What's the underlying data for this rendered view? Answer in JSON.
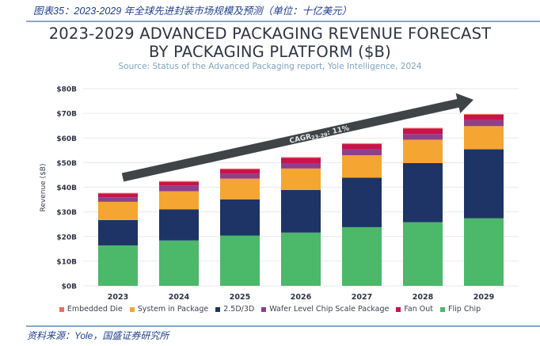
{
  "figure": {
    "caption": "图表35：2023-2029 年全球先进封装市场规模及预测（单位：十亿美元）",
    "source_note": "资料来源：Yole，国盛证券研究所"
  },
  "chart_data": {
    "type": "bar",
    "stacked": true,
    "title_line1": "2023-2029 ADVANCED PACKAGING REVENUE FORECAST",
    "title_line2": "BY PACKAGING PLATFORM ($B)",
    "subtitle": "Source: Status of the Advanced Packaging report, Yole Intelligence, 2024",
    "xlabel": "",
    "ylabel": "Revenue ($B)",
    "ylim": [
      0,
      80
    ],
    "yticks": [
      0,
      10,
      20,
      30,
      40,
      50,
      60,
      70,
      80
    ],
    "ytick_labels": [
      "$0B",
      "$10B",
      "$20B",
      "$30B",
      "$40B",
      "$50B",
      "$60B",
      "$70B",
      "$80B"
    ],
    "grid": true,
    "legend_position": "bottom",
    "categories": [
      "2023",
      "2024",
      "2025",
      "2026",
      "2027",
      "2028",
      "2029"
    ],
    "series": [
      {
        "name": "Flip Chip",
        "color": "#4cb86a",
        "values": [
          16.4,
          18.4,
          20.4,
          21.6,
          23.8,
          25.8,
          27.4
        ]
      },
      {
        "name": "2.5D/3D",
        "color": "#1e3466",
        "values": [
          10.3,
          12.6,
          14.7,
          17.3,
          20.1,
          24.0,
          28.0
        ]
      },
      {
        "name": "System in Package",
        "color": "#f5a531",
        "values": [
          7.4,
          7.4,
          8.4,
          8.7,
          9.1,
          9.5,
          9.4
        ]
      },
      {
        "name": "Wafer Level Chip Scale Package",
        "color": "#8e3f8c",
        "values": [
          1.8,
          2.3,
          2.0,
          2.2,
          2.4,
          2.3,
          2.4
        ]
      },
      {
        "name": "Fan Out",
        "color": "#c8144a",
        "values": [
          1.6,
          1.5,
          1.8,
          2.1,
          2.1,
          2.2,
          2.2
        ]
      },
      {
        "name": "Embedded Die",
        "color": "#ee6b63",
        "values": [
          0.2,
          0.3,
          0.3,
          0.3,
          0.3,
          0.3,
          0.3
        ]
      }
    ],
    "legend_order": [
      "Embedded Die",
      "System in Package",
      "2.5D/3D",
      "Wafer Level Chip Scale Package",
      "Fan Out",
      "Flip Chip"
    ],
    "annotation": {
      "text_main": "CAGR",
      "text_sub": "23-29",
      "text_value": ": 11%",
      "arrow_color": "#3f4447",
      "from_category": "2023",
      "to_category": "2029"
    }
  }
}
